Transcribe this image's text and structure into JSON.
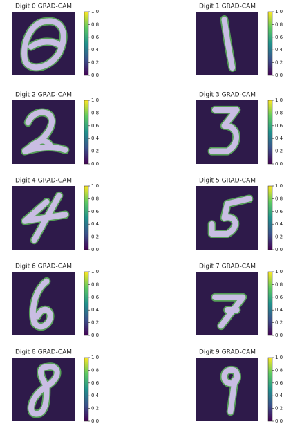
{
  "chart_data": [
    {
      "type": "heatmap",
      "title": "Digit 0 GRAD-CAM",
      "ylim": [
        0,
        1
      ],
      "yticks": [
        {
          "value": 0,
          "label": "0.0"
        },
        0.2,
        0.4,
        0.6,
        0.8,
        {
          "value": 1,
          "label": "1.0"
        }
      ]
    },
    {
      "type": "heatmap",
      "title": "Digit 1 GRAD-CAM",
      "ylim": [
        0,
        1
      ],
      "yticks": [
        {
          "value": 0,
          "label": "0.0"
        },
        0.2,
        0.4,
        0.6,
        0.8,
        {
          "value": 1,
          "label": "1.0"
        }
      ]
    },
    {
      "type": "heatmap",
      "title": "Digit 2 GRAD-CAM",
      "ylim": [
        0,
        1
      ],
      "yticks": [
        {
          "value": 0,
          "label": "0.0"
        },
        0.2,
        0.4,
        0.6,
        0.8,
        {
          "value": 1,
          "label": "1.0"
        }
      ]
    },
    {
      "type": "heatmap",
      "title": "Digit 3 GRAD-CAM",
      "ylim": [
        0,
        1
      ],
      "yticks": [
        {
          "value": 0,
          "label": "0.0"
        },
        0.2,
        0.4,
        0.6,
        0.8,
        {
          "value": 1,
          "label": "1.0"
        }
      ]
    },
    {
      "type": "heatmap",
      "title": "Digit 4 GRAD-CAM",
      "ylim": [
        0,
        1
      ],
      "yticks": [
        {
          "value": 0,
          "label": "0.0"
        },
        0.2,
        0.4,
        0.6,
        0.8,
        {
          "value": 1,
          "label": "1.0"
        }
      ]
    },
    {
      "type": "heatmap",
      "title": "Digit 5 GRAD-CAM",
      "ylim": [
        0,
        1
      ],
      "yticks": [
        {
          "value": 0,
          "label": "0.0"
        },
        0.2,
        0.4,
        0.6,
        0.8,
        {
          "value": 1,
          "label": "1.0"
        }
      ]
    },
    {
      "type": "heatmap",
      "title": "Digit 6 GRAD-CAM",
      "ylim": [
        0,
        1
      ],
      "yticks": [
        {
          "value": 0,
          "label": "0.0"
        },
        0.2,
        0.4,
        0.6,
        0.8,
        {
          "value": 1,
          "label": "1.0"
        }
      ]
    },
    {
      "type": "heatmap",
      "title": "Digit 7 GRAD-CAM",
      "ylim": [
        0,
        1
      ],
      "yticks": [
        {
          "value": 0,
          "label": "0.0"
        },
        0.2,
        0.4,
        0.6,
        0.8,
        {
          "value": 1,
          "label": "1.0"
        }
      ]
    },
    {
      "type": "heatmap",
      "title": "Digit 8 GRAD-CAM",
      "ylim": [
        0,
        1
      ],
      "yticks": [
        {
          "value": 0,
          "label": "0.0"
        },
        0.2,
        0.4,
        0.6,
        0.8,
        {
          "value": 1,
          "label": "1.0"
        }
      ]
    },
    {
      "type": "heatmap",
      "title": "Digit 9 GRAD-CAM",
      "ylim": [
        0,
        1
      ],
      "yticks": [
        {
          "value": 0,
          "label": "0.0"
        },
        0.2,
        0.4,
        0.6,
        0.8,
        {
          "value": 1,
          "label": "1.0"
        }
      ]
    }
  ]
}
